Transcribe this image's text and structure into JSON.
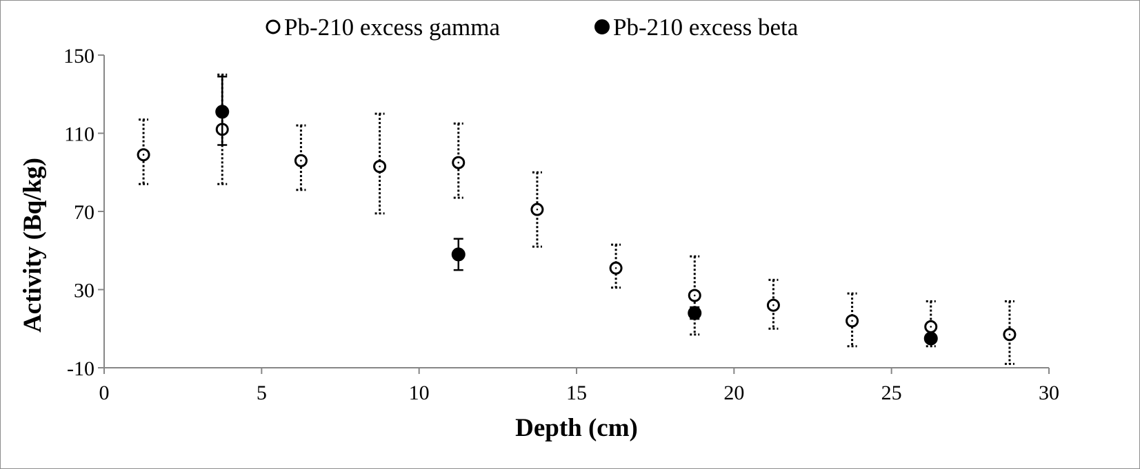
{
  "chart_data": {
    "type": "scatter",
    "title": "",
    "xlabel": "Depth (cm)",
    "ylabel": "Activity (Bq/kg)",
    "xlim": [
      0,
      30
    ],
    "ylim": [
      -10,
      150
    ],
    "x_ticks": [
      "0",
      "5",
      "10",
      "15",
      "20",
      "25",
      "30"
    ],
    "y_ticks": [
      "-10",
      "30",
      "70",
      "110",
      "150"
    ],
    "grid": false,
    "legend_position": "top-center",
    "series": [
      {
        "name": "Pb-210 excess gamma",
        "marker": "hollow-circle",
        "error_bar_style": "dotted",
        "color": "#000000",
        "points": [
          {
            "x": 1.25,
            "y": 99,
            "err_low": 84,
            "err_high": 117
          },
          {
            "x": 3.75,
            "y": 112,
            "err_low": 84,
            "err_high": 140
          },
          {
            "x": 6.25,
            "y": 96,
            "err_low": 81,
            "err_high": 114
          },
          {
            "x": 8.75,
            "y": 93,
            "err_low": 69,
            "err_high": 120
          },
          {
            "x": 11.25,
            "y": 95,
            "err_low": 77,
            "err_high": 115
          },
          {
            "x": 13.75,
            "y": 71,
            "err_low": 52,
            "err_high": 90
          },
          {
            "x": 16.25,
            "y": 41,
            "err_low": 31,
            "err_high": 53
          },
          {
            "x": 18.75,
            "y": 27,
            "err_low": 7,
            "err_high": 47
          },
          {
            "x": 21.25,
            "y": 22,
            "err_low": 10,
            "err_high": 35
          },
          {
            "x": 23.75,
            "y": 14,
            "err_low": 1,
            "err_high": 28
          },
          {
            "x": 26.25,
            "y": 11,
            "err_low": 1,
            "err_high": 24
          },
          {
            "x": 28.75,
            "y": 7,
            "err_low": -8,
            "err_high": 24
          }
        ]
      },
      {
        "name": "Pb-210 excess beta",
        "marker": "filled-circle",
        "error_bar_style": "solid",
        "color": "#000000",
        "points": [
          {
            "x": 3.75,
            "y": 121,
            "err_low": 104,
            "err_high": 139
          },
          {
            "x": 11.25,
            "y": 48,
            "err_low": 40,
            "err_high": 56
          },
          {
            "x": 18.75,
            "y": 18,
            "err_low": 15,
            "err_high": 21
          },
          {
            "x": 26.25,
            "y": 5,
            "err_low": 3,
            "err_high": 7
          }
        ]
      }
    ]
  }
}
